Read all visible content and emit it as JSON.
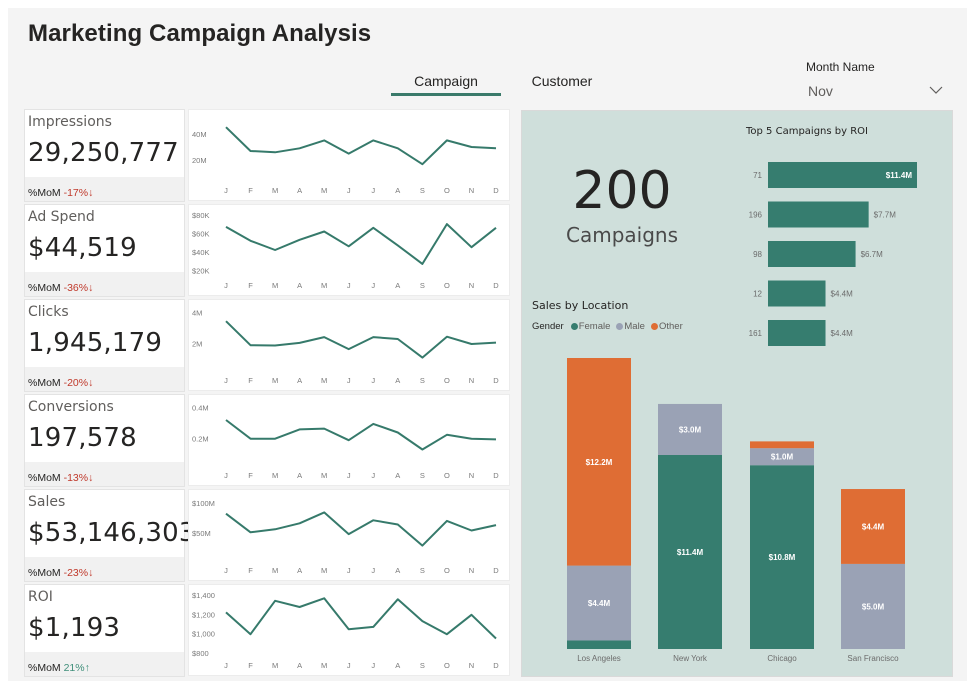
{
  "header": {
    "title": "Marketing Campaign Analysis",
    "tabs": [
      {
        "label": "Campaign",
        "active": true
      },
      {
        "label": "Customer",
        "active": false
      }
    ]
  },
  "slicer": {
    "label": "Month Name",
    "value": "Nov",
    "icon": "chevron-down-icon"
  },
  "colors": {
    "accent": "#3a7a6a",
    "line": "#367a6b",
    "female": "#367d6f",
    "male": "#9aa2b5",
    "other": "#df6d34",
    "negative": "#c0392b",
    "positive": "#3f8f7a",
    "panel_bg": "#cfdfdb"
  },
  "kpis": [
    {
      "label": "Impressions",
      "value": "29,250,777",
      "mom_label": "%MoM",
      "mom_value": "-17%",
      "mom_arrow": "↓",
      "direction": "down"
    },
    {
      "label": "Ad Spend",
      "value": "$44,519",
      "mom_label": "%MoM",
      "mom_value": "-36%",
      "mom_arrow": "↓",
      "direction": "down"
    },
    {
      "label": "Clicks",
      "value": "1,945,179",
      "mom_label": "%MoM",
      "mom_value": "-20%",
      "mom_arrow": "↓",
      "direction": "down"
    },
    {
      "label": "Conversions",
      "value": "197,578",
      "mom_label": "%MoM",
      "mom_value": "-13%",
      "mom_arrow": "↓",
      "direction": "down"
    },
    {
      "label": "Sales",
      "value": "$53,146,303",
      "mom_label": "%MoM",
      "mom_value": "-23%",
      "mom_arrow": "↓",
      "direction": "down"
    },
    {
      "label": "ROI",
      "value": "$1,193",
      "mom_label": "%MoM",
      "mom_value": "21%",
      "mom_arrow": "↑",
      "direction": "up"
    }
  ],
  "campaigns": {
    "count": "200",
    "label": "Campaigns"
  },
  "chart_data": [
    {
      "type": "line",
      "name": "Impressions by month",
      "x": [
        "J",
        "F",
        "M",
        "A",
        "M",
        "J",
        "J",
        "A",
        "S",
        "O",
        "N",
        "D"
      ],
      "values": [
        45,
        27,
        26,
        29,
        35,
        25,
        35,
        29,
        17,
        35,
        30,
        29
      ],
      "unit": "M",
      "ylim": [
        5,
        52
      ],
      "yticks": [
        {
          "v": 40,
          "label": "40M"
        },
        {
          "v": 20,
          "label": "20M"
        }
      ]
    },
    {
      "type": "line",
      "name": "Ad Spend by month",
      "x": [
        "J",
        "F",
        "M",
        "A",
        "M",
        "J",
        "J",
        "A",
        "S",
        "O",
        "N",
        "D"
      ],
      "values": [
        67,
        52,
        42,
        53,
        62,
        46,
        66,
        47,
        27,
        70,
        45,
        66
      ],
      "unit": "K",
      "ylim": [
        15,
        82
      ],
      "yticks": [
        {
          "v": 80,
          "label": "$80K"
        },
        {
          "v": 60,
          "label": "$60K"
        },
        {
          "v": 40,
          "label": "$40K"
        },
        {
          "v": 20,
          "label": "$20K"
        }
      ]
    },
    {
      "type": "line",
      "name": "Clicks by month",
      "x": [
        "J",
        "F",
        "M",
        "A",
        "M",
        "J",
        "J",
        "A",
        "S",
        "O",
        "N",
        "D"
      ],
      "values": [
        3.45,
        1.9,
        1.88,
        2.05,
        2.42,
        1.65,
        2.42,
        2.3,
        1.1,
        2.45,
        1.98,
        2.07
      ],
      "unit": "M",
      "ylim": [
        0.3,
        4.3
      ],
      "yticks": [
        {
          "v": 4,
          "label": "4M"
        },
        {
          "v": 2,
          "label": "2M"
        }
      ]
    },
    {
      "type": "line",
      "name": "Conversions by month",
      "x": [
        "J",
        "F",
        "M",
        "A",
        "M",
        "J",
        "J",
        "A",
        "S",
        "O",
        "N",
        "D"
      ],
      "values": [
        0.32,
        0.2,
        0.2,
        0.26,
        0.265,
        0.19,
        0.295,
        0.24,
        0.13,
        0.225,
        0.2,
        0.195
      ],
      "unit": "M",
      "ylim": [
        0.03,
        0.43
      ],
      "yticks": [
        {
          "v": 0.4,
          "label": "0.4M"
        },
        {
          "v": 0.2,
          "label": "0.2M"
        }
      ]
    },
    {
      "type": "line",
      "name": "Sales by month",
      "x": [
        "J",
        "F",
        "M",
        "A",
        "M",
        "J",
        "J",
        "A",
        "S",
        "O",
        "N",
        "D"
      ],
      "values": [
        82,
        51,
        56,
        66,
        84,
        48,
        71,
        64,
        29,
        70,
        54,
        63
      ],
      "unit": "M",
      "ylim": [
        5,
        108
      ],
      "yticks": [
        {
          "v": 100,
          "label": "$100M"
        },
        {
          "v": 50,
          "label": "$50M"
        }
      ]
    },
    {
      "type": "line",
      "name": "ROI by month",
      "x": [
        "J",
        "F",
        "M",
        "A",
        "M",
        "J",
        "J",
        "A",
        "S",
        "O",
        "N",
        "D"
      ],
      "values": [
        1220,
        995,
        1340,
        1275,
        1365,
        1045,
        1070,
        1355,
        1130,
        995,
        1195,
        950
      ],
      "unit": "$",
      "ylim": [
        780,
        1420
      ],
      "yticks": [
        {
          "v": 1400,
          "label": "$1,400"
        },
        {
          "v": 1200,
          "label": "$1,200"
        },
        {
          "v": 1000,
          "label": "$1,000"
        },
        {
          "v": 800,
          "label": "$800"
        }
      ]
    },
    {
      "type": "bar",
      "orientation": "horizontal",
      "title": "Top 5 Campaigns by ROI",
      "categories": [
        "71",
        "196",
        "98",
        "12",
        "161"
      ],
      "values": [
        11.4,
        7.7,
        6.7,
        4.4,
        4.4
      ],
      "labels": [
        "$11.4M",
        "$7.7M",
        "$6.7M",
        "$4.4M",
        "$4.4M"
      ],
      "xlim": [
        0,
        11.4
      ]
    },
    {
      "type": "bar",
      "stacked": true,
      "title": "Sales by Location",
      "legend_title": "Gender",
      "legend_position": "top-left",
      "categories": [
        "Los Angeles",
        "New York",
        "Chicago",
        "San Francisco"
      ],
      "series": [
        {
          "name": "Female",
          "values": [
            0.5,
            11.4,
            10.8,
            0
          ],
          "labels": [
            "",
            "$11.4M",
            "$10.8M",
            ""
          ]
        },
        {
          "name": "Male",
          "values": [
            4.4,
            3.0,
            1.0,
            5.0
          ],
          "labels": [
            "$4.4M",
            "$3.0M",
            "$1.0M",
            "$5.0M"
          ]
        },
        {
          "name": "Other",
          "values": [
            12.2,
            0,
            0.4,
            4.4
          ],
          "labels": [
            "$12.2M",
            "",
            "",
            "$4.4M"
          ]
        }
      ],
      "ylim": [
        0,
        17.1
      ]
    }
  ]
}
